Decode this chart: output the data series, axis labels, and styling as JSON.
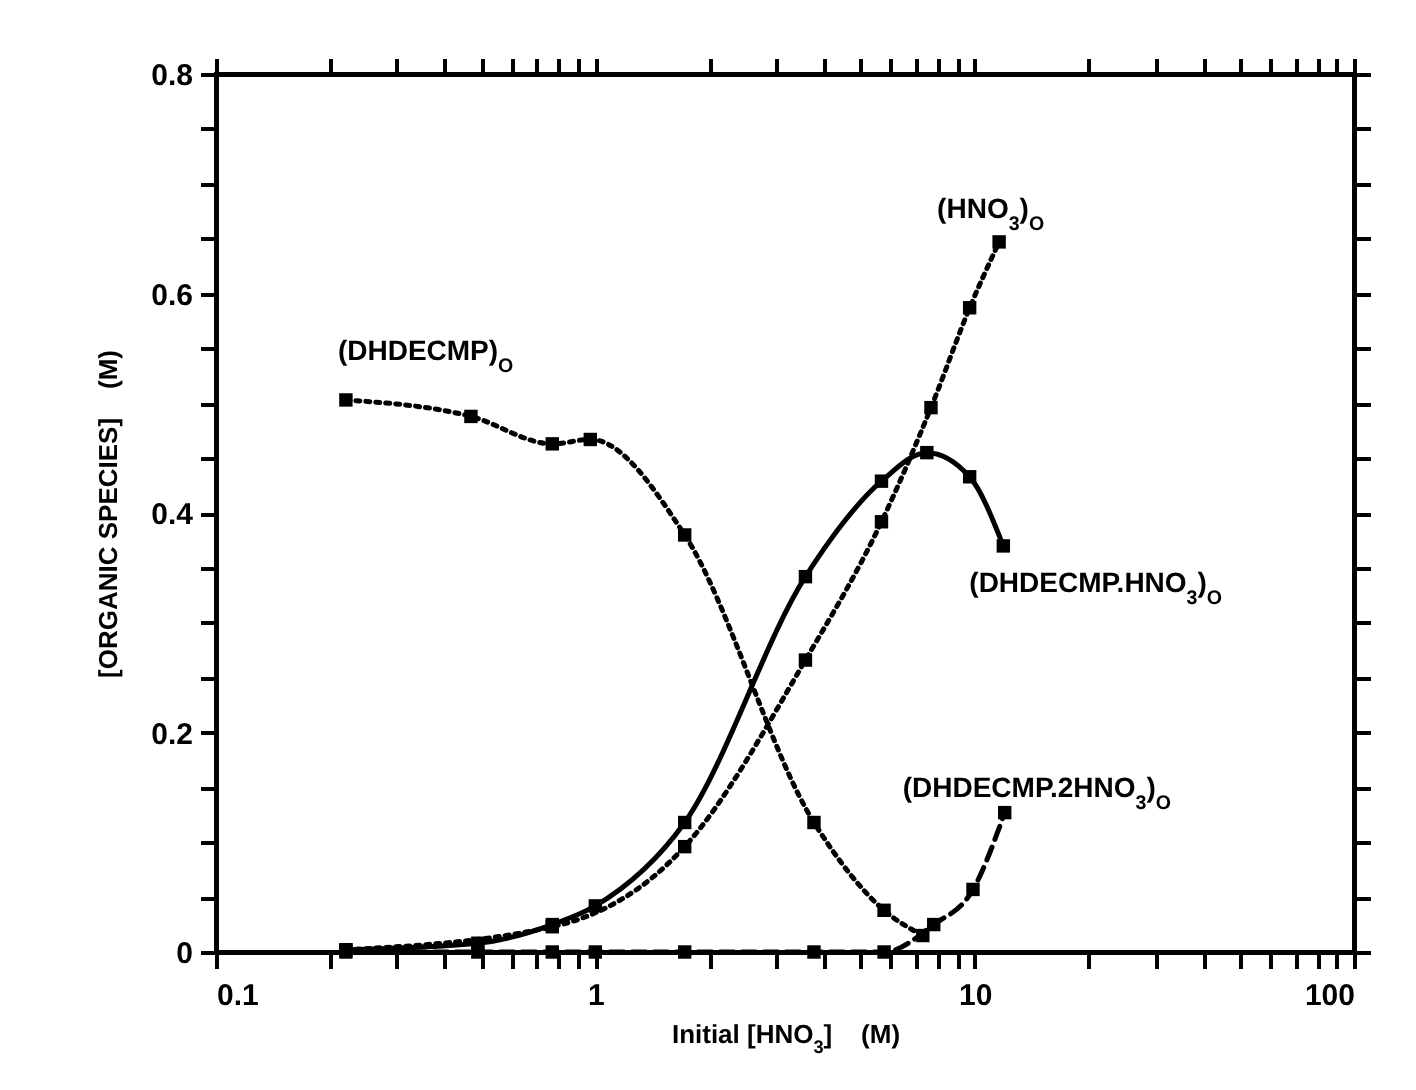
{
  "chart_data": {
    "type": "line",
    "xlabel": "Initial [HNO$_{3}$]    (M)",
    "ylabel": "[ORGANIC SPECIES]    (M)",
    "log": "x",
    "marker": "square",
    "xlim": [
      0.1,
      100
    ],
    "ylim": [
      0,
      0.8
    ],
    "xticks": [
      0.1,
      {
        "value": 0.2,
        "label": null
      },
      {
        "value": 0.3,
        "label": null
      },
      {
        "value": 0.4,
        "label": null
      },
      {
        "value": 0.5,
        "label": null
      },
      {
        "value": 0.6,
        "label": null
      },
      {
        "value": 0.7,
        "label": null
      },
      {
        "value": 0.8,
        "label": null
      },
      {
        "value": 0.9,
        "label": null
      },
      1,
      {
        "value": 2,
        "label": null
      },
      {
        "value": 3,
        "label": null
      },
      {
        "value": 4,
        "label": null
      },
      {
        "value": 5,
        "label": null
      },
      {
        "value": 6,
        "label": null
      },
      {
        "value": 7,
        "label": null
      },
      {
        "value": 8,
        "label": null
      },
      {
        "value": 9,
        "label": null
      },
      10,
      {
        "value": 20,
        "label": null
      },
      {
        "value": 30,
        "label": null
      },
      {
        "value": 40,
        "label": null
      },
      {
        "value": 50,
        "label": null
      },
      {
        "value": 60,
        "label": null
      },
      {
        "value": 70,
        "label": null
      },
      {
        "value": 80,
        "label": null
      },
      {
        "value": 90,
        "label": null
      },
      100
    ],
    "yticks": [
      0,
      {
        "value": 0.05,
        "label": null
      },
      {
        "value": 0.1,
        "label": null
      },
      {
        "value": 0.15,
        "label": null
      },
      0.2,
      {
        "value": 0.25,
        "label": null
      },
      {
        "value": 0.3,
        "label": null
      },
      {
        "value": 0.35,
        "label": null
      },
      0.4,
      {
        "value": 0.45,
        "label": null
      },
      {
        "value": 0.5,
        "label": null
      },
      {
        "value": 0.55,
        "label": null
      },
      0.6,
      {
        "value": 0.65,
        "label": null
      },
      {
        "value": 0.7,
        "label": null
      },
      {
        "value": 0.75,
        "label": null
      },
      0.8
    ],
    "series": [
      {
        "name": "(DHDECMP)$_{O}$",
        "color": "#000000",
        "line_style": "dotted",
        "x": [
          0.22,
          0.47,
          0.77,
          0.97,
          1.72,
          3.77,
          5.77,
          7.3
        ],
        "values": [
          0.503,
          0.488,
          0.463,
          0.467,
          0.38,
          0.118,
          0.038,
          0.015
        ]
      },
      {
        "name": "(HNO$_{3}$)$_{O}$",
        "color": "#000000",
        "line_style": "dotted",
        "x": [
          0.22,
          0.77,
          1.72,
          3.58,
          5.68,
          7.67,
          9.7,
          11.6
        ],
        "values": [
          0.002,
          0.023,
          0.096,
          0.266,
          0.392,
          0.496,
          0.587,
          0.647
        ]
      },
      {
        "name": "(DHDECMP.HNO$_{3}$)$_{O}$",
        "color": "#000000",
        "line_style": "solid",
        "x": [
          0.22,
          0.49,
          0.77,
          1.0,
          1.72,
          3.58,
          5.68,
          7.48,
          9.7,
          11.9
        ],
        "values": [
          0.002,
          0.008,
          0.025,
          0.042,
          0.118,
          0.342,
          0.429,
          0.455,
          0.433,
          0.37
        ]
      },
      {
        "name": "(DHDECMP.2HNO$_{3}$)$_{O}$",
        "color": "#000000",
        "line_style": "dashed",
        "x": [
          0.22,
          0.49,
          0.77,
          1.0,
          1.72,
          3.77,
          5.77,
          7.8,
          9.9,
          12.0
        ],
        "values": [
          0,
          0,
          0,
          0,
          0,
          0,
          0,
          0.025,
          0.057,
          0.127
        ]
      }
    ]
  }
}
